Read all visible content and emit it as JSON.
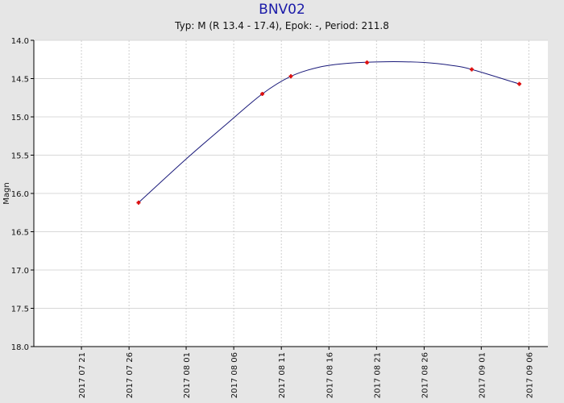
{
  "chart_data": {
    "type": "line",
    "title": "BNV02",
    "subtitle": "Typ: M (R 13.4 - 17.4), Epok: -, Period: 211.8",
    "ylabel": "Magn",
    "xlabel": "",
    "y_inverted": true,
    "ylim": [
      14.0,
      18.0
    ],
    "y_ticks": [
      "14.0",
      "14.5",
      "15.0",
      "15.5",
      "16.0",
      "16.5",
      "17.0",
      "17.5",
      "18.0"
    ],
    "xlim": [
      "2017-07-16",
      "2017-09-08"
    ],
    "x_ticks": [
      "2017 07 21",
      "2017 07 26",
      "2017 08 01",
      "2017 08 06",
      "2017 08 11",
      "2017 08 16",
      "2017 08 21",
      "2017 08 26",
      "2017 09 01",
      "2017 09 06"
    ],
    "grid": true,
    "line_color": "#1a1a7a",
    "marker_color": "#dd1111",
    "points": [
      {
        "x": "2017-07-27",
        "y": 16.12
      },
      {
        "x": "2017-08-09",
        "y": 14.7
      },
      {
        "x": "2017-08-12",
        "y": 14.47
      },
      {
        "x": "2017-08-20",
        "y": 14.29
      },
      {
        "x": "2017-08-31",
        "y": 14.38
      },
      {
        "x": "2017-09-05",
        "y": 14.57
      }
    ],
    "curve": [
      {
        "x": "2017-07-27",
        "y": 16.12
      },
      {
        "x": "2017-08-01",
        "y": 15.55
      },
      {
        "x": "2017-08-05",
        "y": 15.12
      },
      {
        "x": "2017-08-09",
        "y": 14.7
      },
      {
        "x": "2017-08-12",
        "y": 14.47
      },
      {
        "x": "2017-08-15",
        "y": 14.35
      },
      {
        "x": "2017-08-18",
        "y": 14.3
      },
      {
        "x": "2017-08-22",
        "y": 14.28
      },
      {
        "x": "2017-08-26",
        "y": 14.29
      },
      {
        "x": "2017-08-29",
        "y": 14.33
      },
      {
        "x": "2017-08-31",
        "y": 14.38
      },
      {
        "x": "2017-09-05",
        "y": 14.57
      }
    ]
  }
}
